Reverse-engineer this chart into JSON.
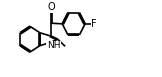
{
  "bg_color": "#ffffff",
  "line_color": "#000000",
  "line_width": 1.2,
  "font_size": 7,
  "figsize": [
    1.61,
    0.77
  ],
  "dpi": 100,
  "BL": 0.155,
  "xlim": [
    -1.0,
    1.15
  ],
  "ylim": [
    -0.42,
    0.42
  ]
}
